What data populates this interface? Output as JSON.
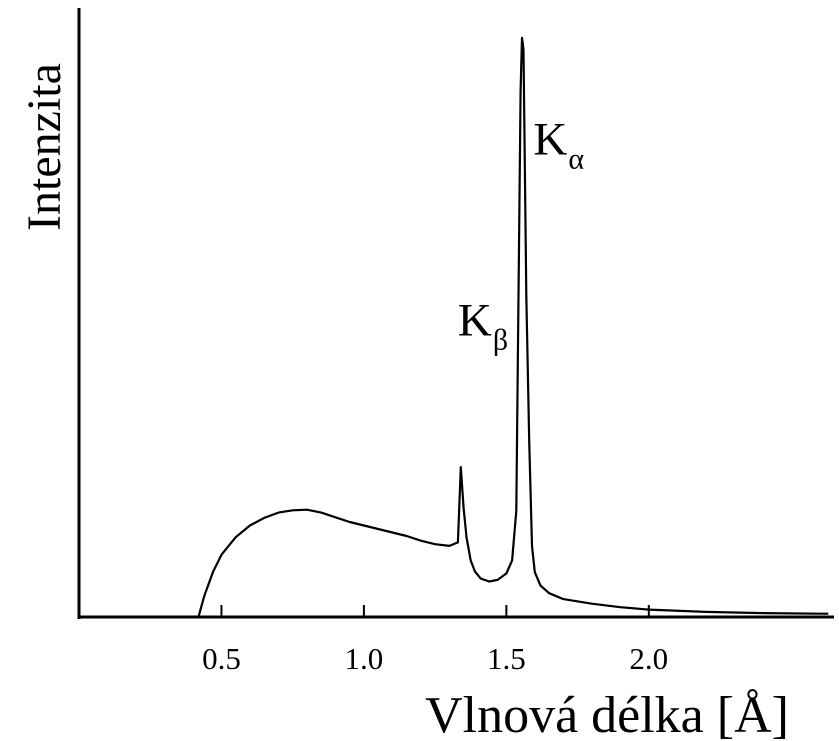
{
  "chart_data": {
    "type": "line",
    "title": "",
    "xlabel": "Vlnová délka [Å]",
    "ylabel": "Intenzita",
    "xlim": [
      0.0,
      2.65
    ],
    "ylim": [
      0,
      100
    ],
    "grid": false,
    "legend": "none",
    "x_ticks": [
      "0.5",
      "1.0",
      "1.5",
      "2.0"
    ],
    "y_ticks": [],
    "series": [
      {
        "x": [
          0.42,
          0.44,
          0.47,
          0.5,
          0.55,
          0.6,
          0.65,
          0.7,
          0.75,
          0.8,
          0.85,
          0.9,
          0.95,
          1.0,
          1.05,
          1.1,
          1.15,
          1.2,
          1.25,
          1.3,
          1.33,
          1.34,
          1.35,
          1.36,
          1.375,
          1.39,
          1.41,
          1.44,
          1.47,
          1.5,
          1.52,
          1.535,
          1.55,
          1.555,
          1.56,
          1.565,
          1.57,
          1.58,
          1.59,
          1.6,
          1.62,
          1.65,
          1.7,
          1.8,
          1.9,
          2.0,
          2.2,
          2.4,
          2.6,
          2.63
        ],
        "y": [
          0,
          3.5,
          7.5,
          10.5,
          13.5,
          15.5,
          16.8,
          17.7,
          18.1,
          18.2,
          17.7,
          16.9,
          16.1,
          15.5,
          14.9,
          14.3,
          13.7,
          12.9,
          12.3,
          12.0,
          12.6,
          25.5,
          18.5,
          13.5,
          9.5,
          7.6,
          6.4,
          5.9,
          6.2,
          7.3,
          9.5,
          18.0,
          90.0,
          99.0,
          97.0,
          76.0,
          55.0,
          30.0,
          12.0,
          7.5,
          5.2,
          3.9,
          2.9,
          2.1,
          1.5,
          1.1,
          0.7,
          0.5,
          0.4,
          0.4
        ]
      }
    ],
    "annotations": [
      {
        "id": "kbeta",
        "main": "K",
        "sub": "β",
        "x": 1.33,
        "y": 48
      },
      {
        "id": "kalpha",
        "main": "K",
        "sub": "α",
        "x": 1.595,
        "y": 79
      }
    ]
  }
}
